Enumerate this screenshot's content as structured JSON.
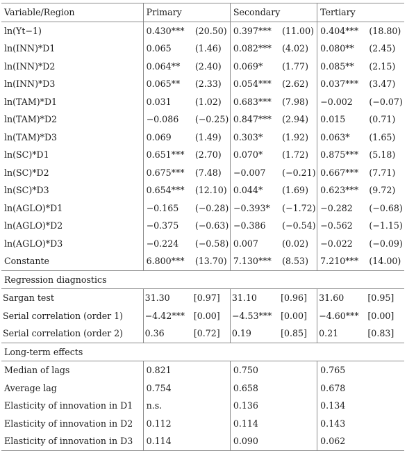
{
  "table": {
    "headers": [
      "Variable/Region",
      "Primary",
      "Secondary",
      "Tertiary"
    ],
    "rows": [
      {
        "label": "ln(Yt−1)",
        "p": [
          "0.430***",
          "(20.50)"
        ],
        "s": [
          "0.397***",
          "(11.00)"
        ],
        "t": [
          "0.404***",
          "(18.80)"
        ]
      },
      {
        "label": "ln(INN)*D1",
        "p": [
          "0.065",
          "(1.46)"
        ],
        "s": [
          "0.082***",
          "(4.02)"
        ],
        "t": [
          "0.080**",
          "(2.45)"
        ]
      },
      {
        "label": "ln(INN)*D2",
        "p": [
          "0.064**",
          "(2.40)"
        ],
        "s": [
          "0.069*",
          "(1.77)"
        ],
        "t": [
          "0.085**",
          "(2.15)"
        ]
      },
      {
        "label": "ln(INN)*D3",
        "p": [
          "0.065**",
          "(2.33)"
        ],
        "s": [
          "0.054***",
          "(2.62)"
        ],
        "t": [
          "0.037***",
          "(3.47)"
        ]
      },
      {
        "label": "ln(TAM)*D1",
        "p": [
          "0.031",
          "(1.02)"
        ],
        "s": [
          "0.683***",
          "(7.98)"
        ],
        "t": [
          "−0.002",
          "(−0.07)"
        ]
      },
      {
        "label": "ln(TAM)*D2",
        "p": [
          "−0.086",
          "(−0.25)"
        ],
        "s": [
          "0.847***",
          "(2.94)"
        ],
        "t": [
          "0.015",
          "(0.71)"
        ]
      },
      {
        "label": "ln(TAM)*D3",
        "p": [
          "0.069",
          "(1.49)"
        ],
        "s": [
          "0.303*",
          "(1.92)"
        ],
        "t": [
          "0.063*",
          "(1.65)"
        ]
      },
      {
        "label": "ln(SC)*D1",
        "p": [
          "0.651***",
          "(2.70)"
        ],
        "s": [
          "0.070*",
          "(1.72)"
        ],
        "t": [
          "0.875***",
          "(5.18)"
        ]
      },
      {
        "label": "ln(SC)*D2",
        "p": [
          "0.675***",
          "(7.48)"
        ],
        "s": [
          "−0.007",
          "(−0.21)"
        ],
        "t": [
          "0.667***",
          "(7.71)"
        ]
      },
      {
        "label": "ln(SC)*D3",
        "p": [
          "0.654***",
          "(12.10)"
        ],
        "s": [
          "0.044*",
          "(1.69)"
        ],
        "t": [
          "0.623***",
          "(9.72)"
        ]
      },
      {
        "label": "ln(AGLO)*D1",
        "p": [
          "−0.165",
          "(−0.28)"
        ],
        "s": [
          "−0.393*",
          "(−1.72)"
        ],
        "t": [
          "−0.282",
          "(−0.68)"
        ]
      },
      {
        "label": "ln(AGLO)*D2",
        "p": [
          "−0.375",
          "(−0.63)"
        ],
        "s": [
          "−0.386",
          "(−0.54)"
        ],
        "t": [
          "−0.562",
          "(−1.15)"
        ]
      },
      {
        "label": "ln(AGLO)*D3",
        "p": [
          "−0.224",
          "(−0.58)"
        ],
        "s": [
          "0.007",
          "(0.02)"
        ],
        "t": [
          "−0.022",
          "(−0.09)"
        ]
      },
      {
        "label": "Constante",
        "p": [
          "6.800***",
          "(13.70)"
        ],
        "s": [
          "7.130***",
          "(8.53)"
        ],
        "t": [
          "7.210***",
          "(14.00)"
        ]
      }
    ],
    "diagnostics_heading": "Regression diagnostics",
    "diagnostics": [
      {
        "label": "Sargan test",
        "p": [
          "31.30",
          "[0.97]"
        ],
        "s": [
          "31.10",
          "[0.96]"
        ],
        "t": [
          "31.60",
          "[0.95]"
        ]
      },
      {
        "label": "Serial correlation (order 1)",
        "p": [
          "−4.42***",
          "[0.00]"
        ],
        "s": [
          "−4.53***",
          "[0.00]"
        ],
        "t": [
          "−4.60***",
          "[0.00]"
        ]
      },
      {
        "label": "Serial correlation (order 2)",
        "p": [
          "0.36",
          "[0.72]"
        ],
        "s": [
          "0.19",
          "[0.85]"
        ],
        "t": [
          "0.21",
          "[0.83]"
        ]
      }
    ],
    "longterm_heading": "Long-term effects",
    "longterm": [
      {
        "label": "Median of lags",
        "p": "0.821",
        "s": "0.750",
        "t": "0.765"
      },
      {
        "label": "Average lag",
        "p": "0.754",
        "s": "0.658",
        "t": "0.678"
      },
      {
        "label": "Elasticity of innovation in D1",
        "p": "n.s.",
        "s": "0.136",
        "t": "0.134"
      },
      {
        "label": "Elasticity of innovation in D2",
        "p": "0.112",
        "s": "0.114",
        "t": "0.143"
      },
      {
        "label": "Elasticity of innovation in D3",
        "p": "0.114",
        "s": "0.090",
        "t": "0.062"
      }
    ]
  }
}
